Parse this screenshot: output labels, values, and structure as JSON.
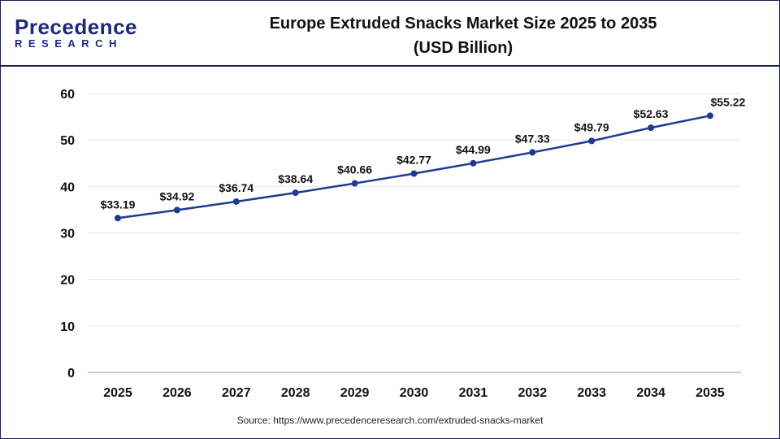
{
  "logo": {
    "line1": "Precedence",
    "line2": "RESEARCH"
  },
  "chart_data": {
    "type": "line",
    "title": "Europe Extruded Snacks Market Size 2025 to 2035",
    "subtitle": "(USD Billion)",
    "categories": [
      "2025",
      "2026",
      "2027",
      "2028",
      "2029",
      "2030",
      "2031",
      "2032",
      "2033",
      "2034",
      "2035"
    ],
    "values": [
      33.19,
      34.92,
      36.74,
      38.64,
      40.66,
      42.77,
      44.99,
      47.33,
      49.79,
      52.63,
      55.22
    ],
    "data_labels": [
      "$33.19",
      "$34.92",
      "$36.74",
      "$38.64",
      "$40.66",
      "$42.77",
      "$44.99",
      "$47.33",
      "$49.79",
      "$52.63",
      "$55.22"
    ],
    "ylim": [
      0,
      60
    ],
    "yticks": [
      0,
      10,
      20,
      30,
      40,
      50,
      60
    ],
    "grid": true,
    "line_color": "#1f3a93"
  },
  "source": "Source: https://www.precedenceresearch.com/extruded-snacks-market"
}
